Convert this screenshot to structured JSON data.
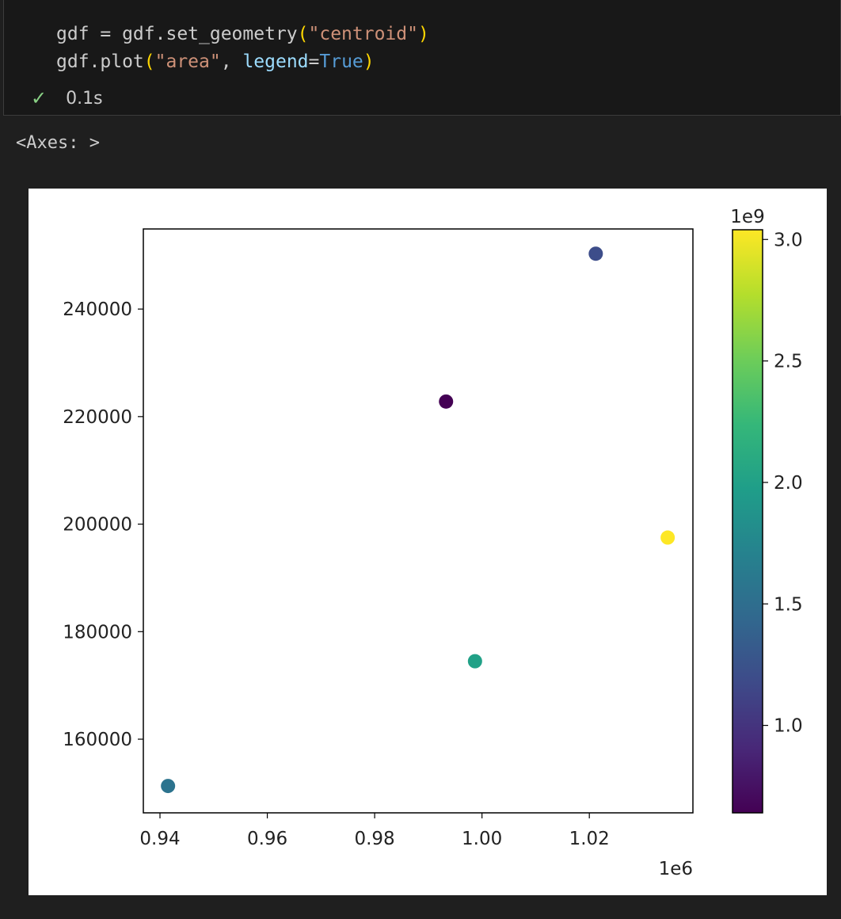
{
  "cell": {
    "code_lines": [
      [
        {
          "t": "gdf = gdf.set_geometry",
          "c": ""
        },
        {
          "t": "(",
          "c": "p"
        },
        {
          "t": "\"centroid\"",
          "c": "s"
        },
        {
          "t": ")",
          "c": "p"
        }
      ],
      [
        {
          "t": "gdf.plot",
          "c": ""
        },
        {
          "t": "(",
          "c": "p"
        },
        {
          "t": "\"area\"",
          "c": "s"
        },
        {
          "t": ", ",
          "c": ""
        },
        {
          "t": "legend",
          "c": "k"
        },
        {
          "t": "=",
          "c": ""
        },
        {
          "t": "True",
          "c": "c"
        },
        {
          "t": ")",
          "c": "p"
        }
      ]
    ],
    "status_icon": "check-icon",
    "exec_time": "0.1s",
    "output_text": "<Axes: >"
  },
  "chart_data": {
    "type": "scatter",
    "x": [
      941500,
      993300,
      1021200,
      1034600,
      998700
    ],
    "y": [
      151300,
      222800,
      250300,
      197500,
      174500
    ],
    "color_values": [
      1550000000.0,
      640000000.0,
      1200000000.0,
      3040000000.0,
      2000000000.0
    ],
    "colormap": "viridis",
    "xlim": [
      936900,
      1039300
    ],
    "ylim": [
      146300,
      254900
    ],
    "x_ticks": [
      940000,
      960000,
      980000,
      1000000,
      1020000
    ],
    "x_tick_labels": [
      "0.94",
      "0.96",
      "0.98",
      "1.00",
      "1.02"
    ],
    "x_offset_label": "1e6",
    "y_ticks": [
      160000,
      180000,
      200000,
      220000,
      240000
    ],
    "y_tick_labels": [
      "160000",
      "180000",
      "200000",
      "220000",
      "240000"
    ],
    "colorbar": {
      "range": [
        640000000.0,
        3040000000.0
      ],
      "ticks": [
        1000000000.0,
        1500000000.0,
        2000000000.0,
        2500000000.0,
        3000000000.0
      ],
      "tick_labels": [
        "1.0",
        "1.5",
        "2.0",
        "2.5",
        "3.0"
      ],
      "offset_label": "1e9"
    },
    "grid": false
  }
}
